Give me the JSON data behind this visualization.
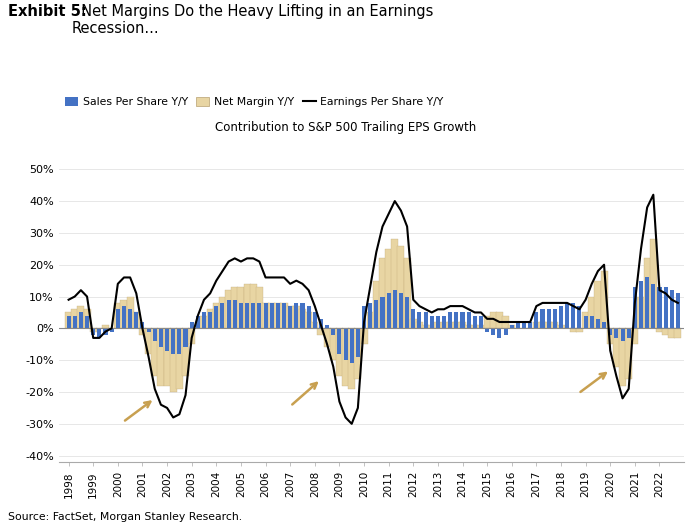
{
  "title_bold": "Exhibit 5:",
  "title_normal": "  Net Margins Do the Heavy Lifting in an Earnings\nRecession...",
  "subtitle": "Contribution to S&P 500 Trailing EPS Growth",
  "source": "Source: FactSet, Morgan Stanley Research.",
  "legend_sales": "Sales Per Share Y/Y",
  "legend_net_margin": "Net Margin Y/Y",
  "legend_eps": "Earnings Per Share Y/Y",
  "sales_color": "#4472C4",
  "net_margin_color": "#E8D5A3",
  "net_margin_edge_color": "#B8A070",
  "eps_color": "#000000",
  "background_color": "#FFFFFF",
  "ylim": [
    -42,
    57
  ],
  "yticks": [
    -40,
    -30,
    -20,
    -10,
    0,
    10,
    20,
    30,
    40,
    50
  ],
  "ytick_labels": [
    "-40%",
    "-30%",
    "-20%",
    "-10%",
    "0%",
    "10%",
    "20%",
    "30%",
    "40%",
    "50%"
  ],
  "x_years": [
    1998,
    1999,
    2000,
    2001,
    2002,
    2003,
    2004,
    2005,
    2006,
    2007,
    2008,
    2009,
    2010,
    2011,
    2012,
    2013,
    2014,
    2015,
    2016,
    2017,
    2018,
    2019,
    2020,
    2021,
    2022
  ],
  "t": [
    1998.0,
    1998.25,
    1998.5,
    1998.75,
    1999.0,
    1999.25,
    1999.5,
    1999.75,
    2000.0,
    2000.25,
    2000.5,
    2000.75,
    2001.0,
    2001.25,
    2001.5,
    2001.75,
    2002.0,
    2002.25,
    2002.5,
    2002.75,
    2003.0,
    2003.25,
    2003.5,
    2003.75,
    2004.0,
    2004.25,
    2004.5,
    2004.75,
    2005.0,
    2005.25,
    2005.5,
    2005.75,
    2006.0,
    2006.25,
    2006.5,
    2006.75,
    2007.0,
    2007.25,
    2007.5,
    2007.75,
    2008.0,
    2008.25,
    2008.5,
    2008.75,
    2009.0,
    2009.25,
    2009.5,
    2009.75,
    2010.0,
    2010.25,
    2010.5,
    2010.75,
    2011.0,
    2011.25,
    2011.5,
    2011.75,
    2012.0,
    2012.25,
    2012.5,
    2012.75,
    2013.0,
    2013.25,
    2013.5,
    2013.75,
    2014.0,
    2014.25,
    2014.5,
    2014.75,
    2015.0,
    2015.25,
    2015.5,
    2015.75,
    2016.0,
    2016.25,
    2016.5,
    2016.75,
    2017.0,
    2017.25,
    2017.5,
    2017.75,
    2018.0,
    2018.25,
    2018.5,
    2018.75,
    2019.0,
    2019.25,
    2019.5,
    2019.75,
    2020.0,
    2020.25,
    2020.5,
    2020.75,
    2021.0,
    2021.25,
    2021.5,
    2021.75,
    2022.0,
    2022.25,
    2022.5,
    2022.75
  ],
  "sales": [
    4,
    4,
    5,
    4,
    -2,
    -3,
    -2,
    -1,
    6,
    7,
    6,
    5,
    2,
    -1,
    -4,
    -6,
    -7,
    -8,
    -8,
    -6,
    2,
    4,
    5,
    5,
    7,
    8,
    9,
    9,
    8,
    8,
    8,
    8,
    8,
    8,
    8,
    8,
    7,
    8,
    8,
    7,
    5,
    3,
    1,
    -2,
    -8,
    -10,
    -11,
    -9,
    7,
    8,
    9,
    10,
    11,
    12,
    11,
    10,
    6,
    5,
    5,
    4,
    4,
    4,
    5,
    5,
    5,
    5,
    4,
    4,
    -1,
    -2,
    -3,
    -2,
    1,
    2,
    2,
    2,
    5,
    6,
    6,
    6,
    7,
    8,
    8,
    7,
    4,
    4,
    3,
    2,
    -2,
    -3,
    -4,
    -3,
    13,
    15,
    16,
    14,
    13,
    13,
    12,
    11
  ],
  "net_margin": [
    5,
    6,
    7,
    6,
    -1,
    0,
    1,
    0,
    8,
    9,
    10,
    5,
    -2,
    -8,
    -15,
    -18,
    -18,
    -20,
    -19,
    -15,
    -5,
    0,
    4,
    6,
    8,
    10,
    12,
    13,
    13,
    14,
    14,
    13,
    8,
    8,
    8,
    8,
    7,
    7,
    6,
    5,
    2,
    -2,
    -6,
    -10,
    -15,
    -18,
    -19,
    -16,
    -5,
    5,
    15,
    22,
    25,
    28,
    26,
    22,
    3,
    2,
    1,
    1,
    2,
    2,
    2,
    2,
    2,
    1,
    1,
    1,
    4,
    5,
    5,
    4,
    1,
    0,
    0,
    0,
    2,
    2,
    2,
    2,
    1,
    0,
    -1,
    -1,
    5,
    10,
    15,
    18,
    -5,
    -12,
    -18,
    -16,
    -5,
    10,
    22,
    28,
    -1,
    -2,
    -3,
    -3
  ],
  "eps": [
    9,
    10,
    12,
    10,
    -3,
    -3,
    -1,
    0,
    14,
    16,
    16,
    11,
    0,
    -9,
    -19,
    -24,
    -25,
    -28,
    -27,
    -21,
    -3,
    4,
    9,
    11,
    15,
    18,
    21,
    22,
    21,
    22,
    22,
    21,
    16,
    16,
    16,
    16,
    14,
    15,
    14,
    12,
    7,
    1,
    -5,
    -12,
    -23,
    -28,
    -30,
    -25,
    2,
    13,
    24,
    32,
    36,
    40,
    37,
    32,
    9,
    7,
    6,
    5,
    6,
    6,
    7,
    7,
    7,
    6,
    5,
    5,
    3,
    3,
    2,
    2,
    2,
    2,
    2,
    2,
    7,
    8,
    8,
    8,
    8,
    8,
    7,
    6,
    9,
    14,
    18,
    20,
    -7,
    -15,
    -22,
    -19,
    8,
    25,
    38,
    42,
    12,
    11,
    9,
    8
  ],
  "arrow_color": "#C8A050"
}
